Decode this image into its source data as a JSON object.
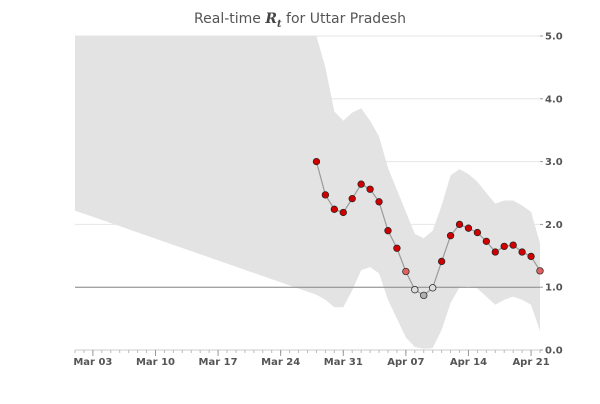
{
  "title_prefix": "Real-time ",
  "title_symbol": "R",
  "title_subscript": "t",
  "title_suffix": " for Uttar Pradesh",
  "chart_data": {
    "type": "line",
    "title": "Real-time R_t for Uttar Pradesh",
    "xlabel": "",
    "ylabel": "",
    "x_axis": {
      "type": "date",
      "range": [
        "2020-03-01",
        "2020-04-22"
      ],
      "tick_labels": [
        "Mar 03",
        "Mar 10",
        "Mar 17",
        "Mar 24",
        "Mar 31",
        "Apr 07",
        "Apr 14",
        "Apr 21"
      ],
      "tick_dates": [
        "2020-03-03",
        "2020-03-10",
        "2020-03-17",
        "2020-03-24",
        "2020-03-31",
        "2020-04-07",
        "2020-04-14",
        "2020-04-21"
      ]
    },
    "y_axis": {
      "range": [
        0,
        5
      ],
      "position": "right",
      "tick_labels": [
        "0.0",
        "1.0",
        "2.0",
        "3.0",
        "4.0",
        "5.0"
      ],
      "tick_values": [
        0,
        1,
        2,
        3,
        4,
        5
      ]
    },
    "grid": true,
    "reference_line": 1.0,
    "colors": {
      "high": "#d00000",
      "mid": "#e06060",
      "low": "#b0b0b0",
      "band": "#e3e3e3",
      "line": "#9a9a9a"
    },
    "interval_band": {
      "x": [
        "2020-03-01",
        "2020-03-28",
        "2020-03-29",
        "2020-03-30",
        "2020-03-31",
        "2020-04-01",
        "2020-04-02",
        "2020-04-03",
        "2020-04-04",
        "2020-04-05",
        "2020-04-06",
        "2020-04-07",
        "2020-04-08",
        "2020-04-09",
        "2020-04-10",
        "2020-04-11",
        "2020-04-12",
        "2020-04-13",
        "2020-04-14",
        "2020-04-15",
        "2020-04-16",
        "2020-04-17",
        "2020-04-18",
        "2020-04-19",
        "2020-04-20",
        "2020-04-21",
        "2020-04-22"
      ],
      "upper": [
        5.0,
        5.0,
        4.5,
        3.8,
        3.65,
        3.78,
        3.85,
        3.65,
        3.4,
        2.9,
        2.55,
        2.2,
        1.85,
        1.78,
        1.9,
        2.3,
        2.78,
        2.88,
        2.8,
        2.68,
        2.5,
        2.33,
        2.38,
        2.38,
        2.3,
        2.2,
        1.7
      ],
      "lower": [
        2.22,
        0.88,
        0.8,
        0.68,
        0.68,
        0.95,
        1.27,
        1.32,
        1.22,
        0.8,
        0.5,
        0.2,
        0.05,
        0.02,
        0.03,
        0.32,
        0.75,
        1.0,
        1.02,
        0.98,
        0.85,
        0.72,
        0.8,
        0.85,
        0.8,
        0.72,
        0.3
      ]
    },
    "series": [
      {
        "x": [
          "2020-03-28",
          "2020-03-29",
          "2020-03-30",
          "2020-03-31",
          "2020-04-01",
          "2020-04-02",
          "2020-04-03",
          "2020-04-04",
          "2020-04-05",
          "2020-04-06",
          "2020-04-07",
          "2020-04-08",
          "2020-04-09",
          "2020-04-10",
          "2020-04-11",
          "2020-04-12",
          "2020-04-13",
          "2020-04-14",
          "2020-04-15",
          "2020-04-16",
          "2020-04-17",
          "2020-04-18",
          "2020-04-19",
          "2020-04-20",
          "2020-04-21",
          "2020-04-22"
        ],
        "values": [
          3.0,
          2.47,
          2.24,
          2.19,
          2.41,
          2.64,
          2.56,
          2.36,
          1.9,
          1.62,
          1.25,
          0.96,
          0.87,
          0.99,
          1.41,
          1.82,
          2.0,
          1.94,
          1.87,
          1.73,
          1.56,
          1.65,
          1.67,
          1.56,
          1.49,
          1.26
        ]
      }
    ]
  }
}
